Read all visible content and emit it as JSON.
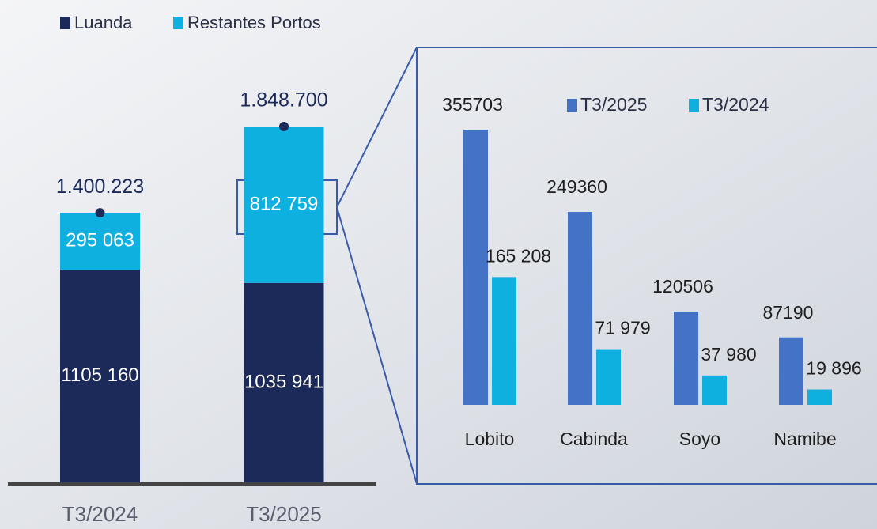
{
  "chart_data": [
    {
      "type": "stacked-bar",
      "categories": [
        "T3/2024",
        "T3/2025"
      ],
      "series": [
        {
          "name": "Luanda",
          "color": "#1c2a5a",
          "values": [
            1105160,
            1035941
          ],
          "value_labels": [
            "1105 160",
            "1035 941"
          ]
        },
        {
          "name": "Restantes Portos",
          "color": "#0eb0e0",
          "values": [
            295063,
            812759
          ],
          "value_labels": [
            "295 063",
            "812 759"
          ]
        }
      ],
      "totals": [
        1400223,
        1848700
      ],
      "total_labels": [
        "1.400.223",
        "1.848.700"
      ]
    },
    {
      "type": "grouped-bar",
      "categories": [
        "Lobito",
        "Cabinda",
        "Soyo",
        "Namibe"
      ],
      "series": [
        {
          "name": "T3/2025",
          "color": "#4472c4",
          "values": [
            355703,
            249360,
            120506,
            87190
          ]
        },
        {
          "name": "T3/2024",
          "color": "#0eb0e0",
          "values": [
            165208,
            71979,
            37980,
            19896
          ],
          "value_labels": [
            "165 208",
            "71 979",
            "37 980",
            "19 896"
          ]
        }
      ]
    }
  ]
}
